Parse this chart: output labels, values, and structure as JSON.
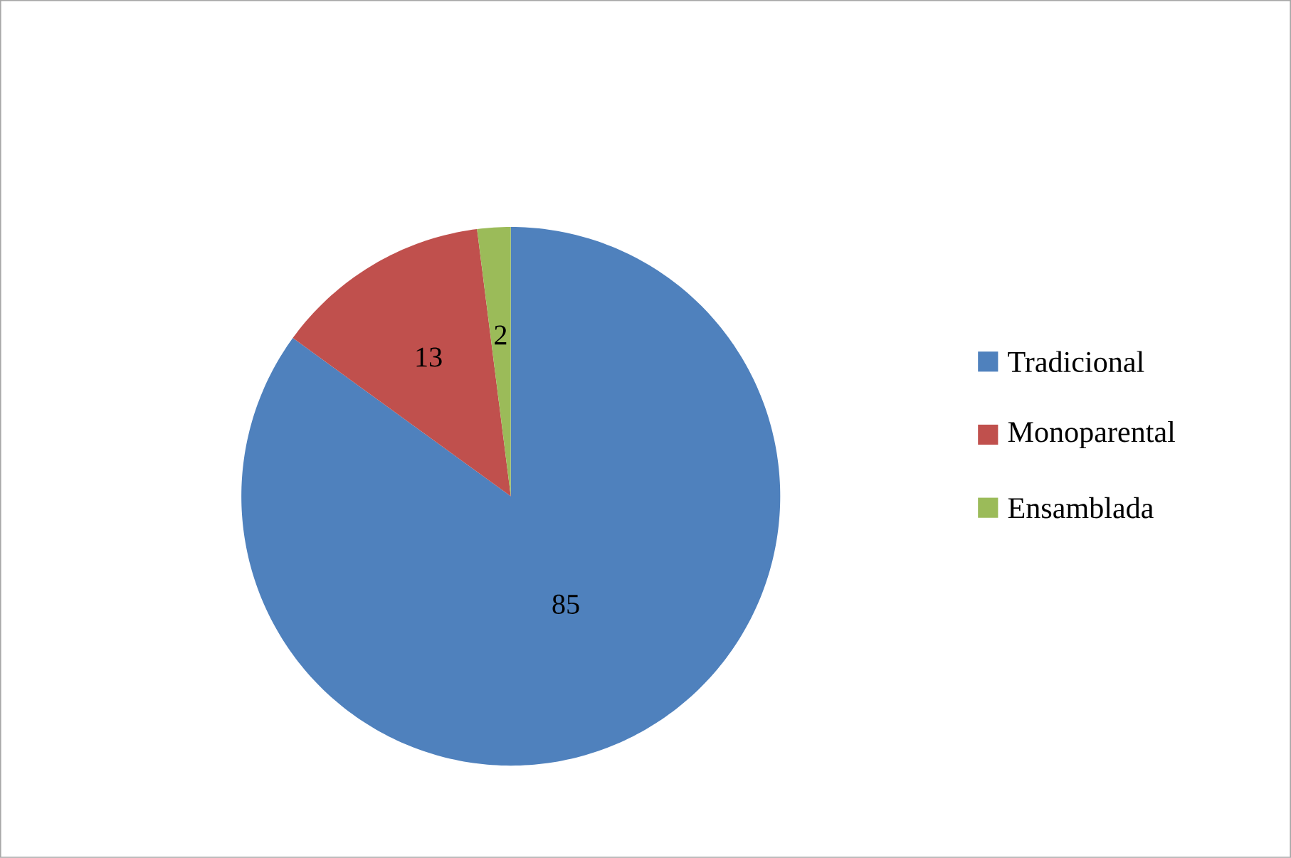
{
  "chart_data": {
    "type": "pie",
    "categories": [
      "Tradicional",
      "Monoparental",
      "Ensamblada"
    ],
    "values": [
      85,
      13,
      2
    ],
    "colors": [
      "#4f81bd",
      "#c0504d",
      "#9bbb59"
    ],
    "data_labels": true,
    "legend": "right"
  }
}
